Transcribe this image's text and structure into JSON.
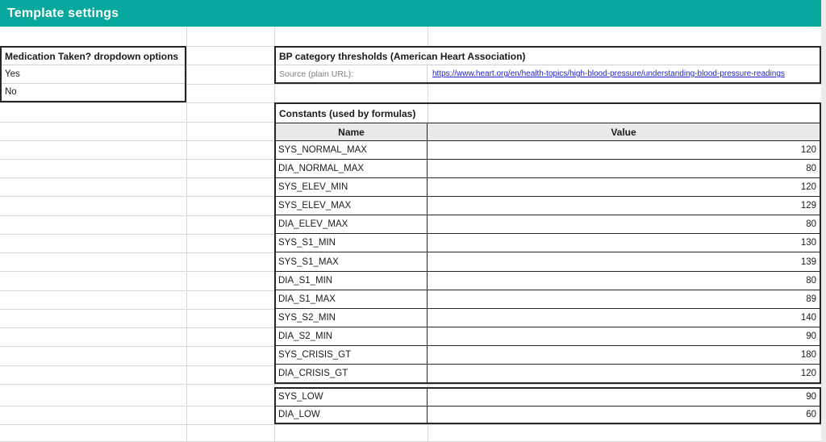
{
  "banner": {
    "title": "Template settings"
  },
  "medication_table": {
    "header": "Medication Taken? dropdown options",
    "options": [
      "Yes",
      "No"
    ]
  },
  "bp_section": {
    "header": "BP category thresholds (American Heart Association)",
    "source_label": "Source (plain URL):",
    "source_url": "https://www.heart.org/en/health-topics/high-blood-pressure/understanding-blood-pressure-readings"
  },
  "constants_section": {
    "header": "Constants (used by formulas)",
    "columns": {
      "name": "Name",
      "value": "Value"
    },
    "rows": [
      {
        "name": "SYS_NORMAL_MAX",
        "value": 120
      },
      {
        "name": "DIA_NORMAL_MAX",
        "value": 80
      },
      {
        "name": "SYS_ELEV_MIN",
        "value": 120
      },
      {
        "name": "SYS_ELEV_MAX",
        "value": 129
      },
      {
        "name": "DIA_ELEV_MAX",
        "value": 80
      },
      {
        "name": "SYS_S1_MIN",
        "value": 130
      },
      {
        "name": "SYS_S1_MAX",
        "value": 139
      },
      {
        "name": "DIA_S1_MIN",
        "value": 80
      },
      {
        "name": "DIA_S1_MAX",
        "value": 89
      },
      {
        "name": "SYS_S2_MIN",
        "value": 140
      },
      {
        "name": "DIA_S2_MIN",
        "value": 90
      },
      {
        "name": "SYS_CRISIS_GT",
        "value": 180
      },
      {
        "name": "DIA_CRISIS_GT",
        "value": 120
      },
      {
        "name": "SYS_LOW",
        "value": 90
      },
      {
        "name": "DIA_LOW",
        "value": 60
      }
    ]
  },
  "colors": {
    "accent_teal": "#06a79c",
    "link_blue": "#2323cb",
    "header_gray_bg": "#e9e9e9",
    "grid_line": "#d9d9d9",
    "border_dark": "#262626"
  }
}
